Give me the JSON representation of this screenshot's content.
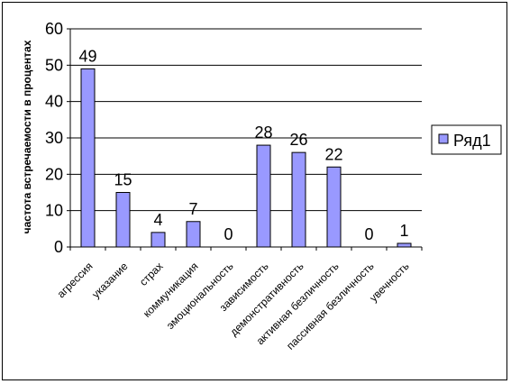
{
  "chart_data": {
    "type": "bar",
    "categories": [
      "агрессия",
      "указание",
      "страх",
      "коммуникация",
      "эмоциональность",
      "зависимость",
      "демонстративность",
      "активная безличность",
      "пассивная безличность",
      "увечность"
    ],
    "series": [
      {
        "name": "Ряд1",
        "values": [
          49,
          15,
          4,
          7,
          0,
          28,
          26,
          22,
          0,
          1
        ],
        "color": "#9999FF"
      }
    ],
    "data_labels": [
      "49",
      "15",
      "4",
      "7",
      "0",
      "28",
      "26",
      "22",
      "0",
      "1"
    ],
    "title": "",
    "xlabel": "",
    "ylabel": "частота встречаемости в процентах",
    "ylim": [
      0,
      60
    ],
    "yticks": [
      "0",
      "10",
      "20",
      "30",
      "40",
      "50",
      "60"
    ],
    "grid": true,
    "legend_position": "right"
  }
}
